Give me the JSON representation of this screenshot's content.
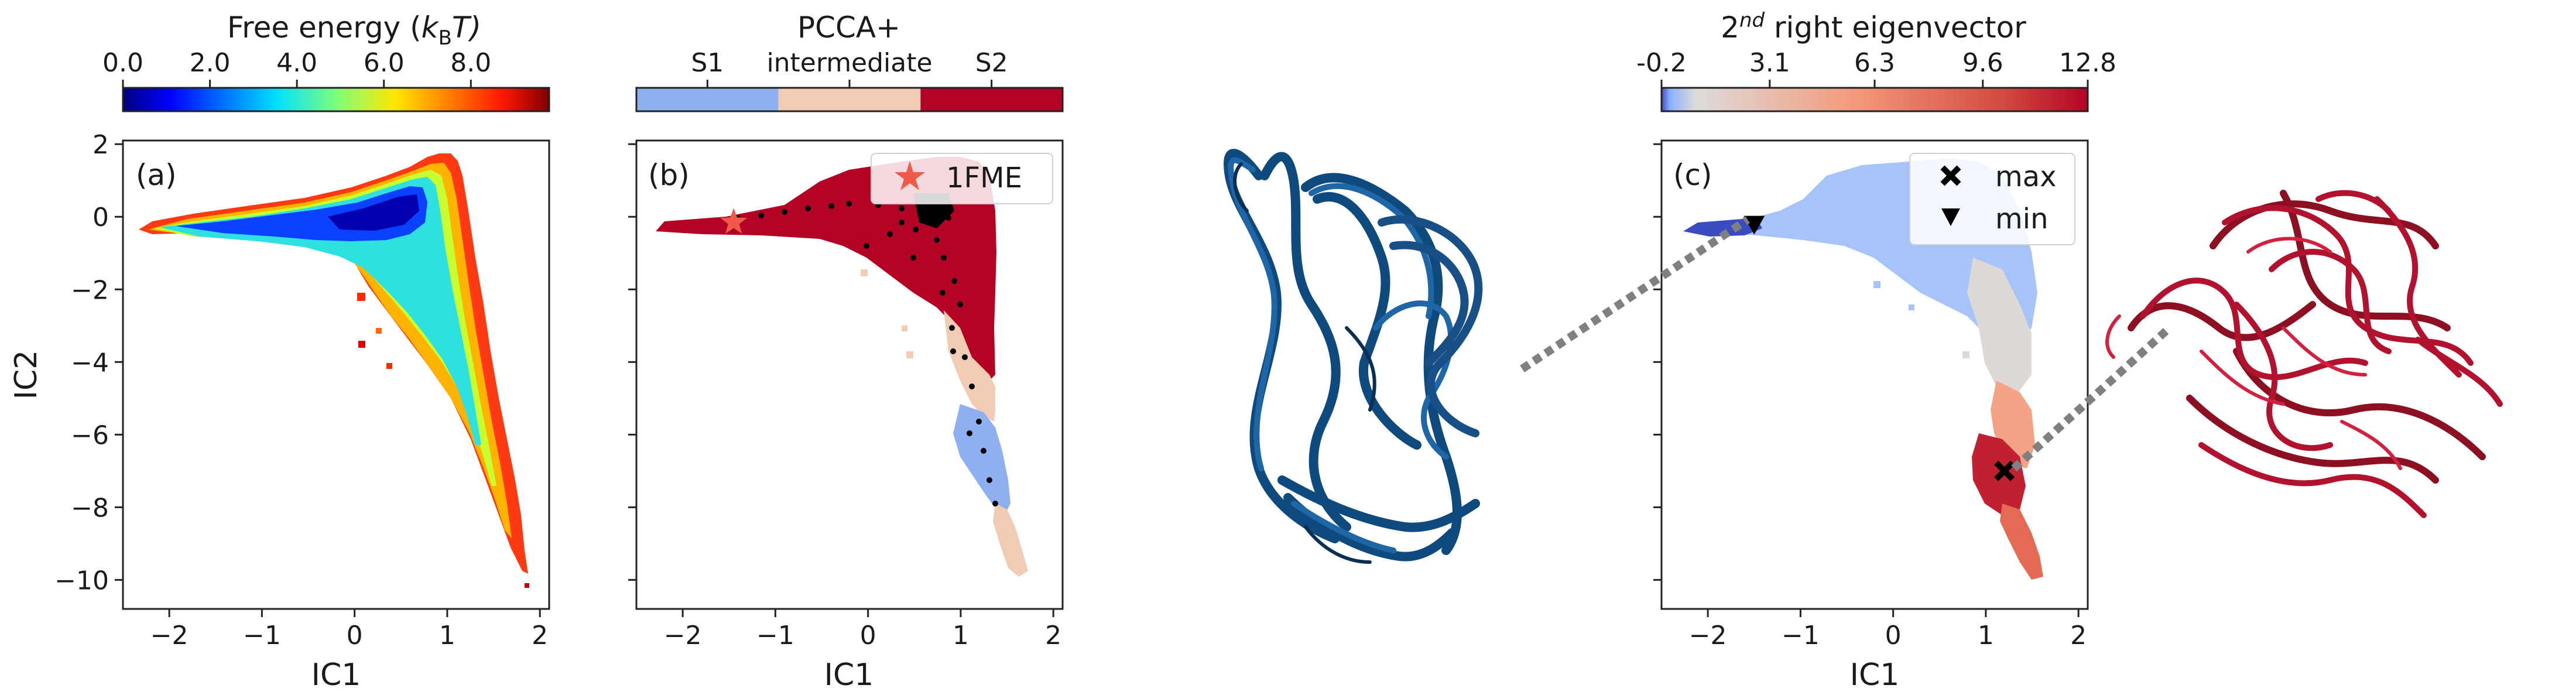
{
  "chart_data": [
    {
      "type": "heatmap",
      "panel_label": "(a)",
      "xlabel": "IC1",
      "ylabel": "IC2",
      "xlim": [
        -2.5,
        2.1
      ],
      "ylim": [
        -10.8,
        2.1
      ],
      "xticks": [
        -2,
        -1,
        0,
        1,
        2
      ],
      "yticks": [
        2,
        0,
        -2,
        -4,
        -6,
        -8,
        -10
      ],
      "xtick_labels": [
        "−2",
        "−1",
        "0",
        "1",
        "2"
      ],
      "ytick_labels": [
        "2",
        "0",
        "−2",
        "−4",
        "−6",
        "−8",
        "−10"
      ],
      "colorbar": {
        "title_prefix": "Free energy (",
        "title_k": "k",
        "title_sub": "B",
        "title_suffix": "T)",
        "ticks": [
          0.0,
          2.0,
          4.0,
          6.0,
          8.0
        ],
        "tick_labels": [
          "0.0",
          "2.0",
          "4.0",
          "6.0",
          "8.0"
        ],
        "range": [
          0.0,
          9.8
        ],
        "colormap": "jet"
      }
    },
    {
      "type": "scatter",
      "panel_label": "(b)",
      "xlabel": "IC1",
      "ylim": [
        -10.8,
        2.1
      ],
      "xlim": [
        -2.5,
        2.1
      ],
      "xticks": [
        -2,
        -1,
        0,
        1,
        2
      ],
      "xtick_labels": [
        "−2",
        "−1",
        "0",
        "1",
        "2"
      ],
      "colorbar": {
        "title": "PCCA+",
        "categories": [
          "S1",
          "intermediate",
          "S2"
        ],
        "colors": [
          "#8fb0f0",
          "#f2cbb4",
          "#b40426"
        ]
      },
      "legend": {
        "label": "1FME",
        "marker": "star",
        "color": "#f05a48",
        "placement": "top-right"
      },
      "reference_point": {
        "x": -1.45,
        "y": -0.15
      }
    },
    {
      "type": "scatter",
      "panel_label": "(c)",
      "xlabel": "IC1",
      "xlim": [
        -2.5,
        2.1
      ],
      "ylim": [
        -10.8,
        2.1
      ],
      "xticks": [
        -2,
        -1,
        0,
        1,
        2
      ],
      "xtick_labels": [
        "−2",
        "−1",
        "0",
        "1",
        "2"
      ],
      "colorbar": {
        "title_base": "2",
        "title_sup": "nd",
        "title_rest": " right eigenvector",
        "ticks": [
          -0.2,
          3.1,
          6.3,
          9.6,
          12.8
        ],
        "tick_labels": [
          "-0.2",
          "3.1",
          "6.3",
          "9.6",
          "12.8"
        ],
        "range": [
          -0.2,
          12.8
        ],
        "colormap": "coolwarm"
      },
      "legend": {
        "placement": "top-right",
        "entries": [
          {
            "label": "max",
            "marker": "X",
            "x": 1.2,
            "y": -7.0
          },
          {
            "label": "min",
            "marker": "triangle-down",
            "x": -1.5,
            "y": -0.2
          }
        ]
      }
    }
  ],
  "structures": [
    {
      "name": "folded-structure-render",
      "color": "#0e4a7e"
    },
    {
      "name": "unfolded-structure-render",
      "color": "#b3122e"
    }
  ]
}
